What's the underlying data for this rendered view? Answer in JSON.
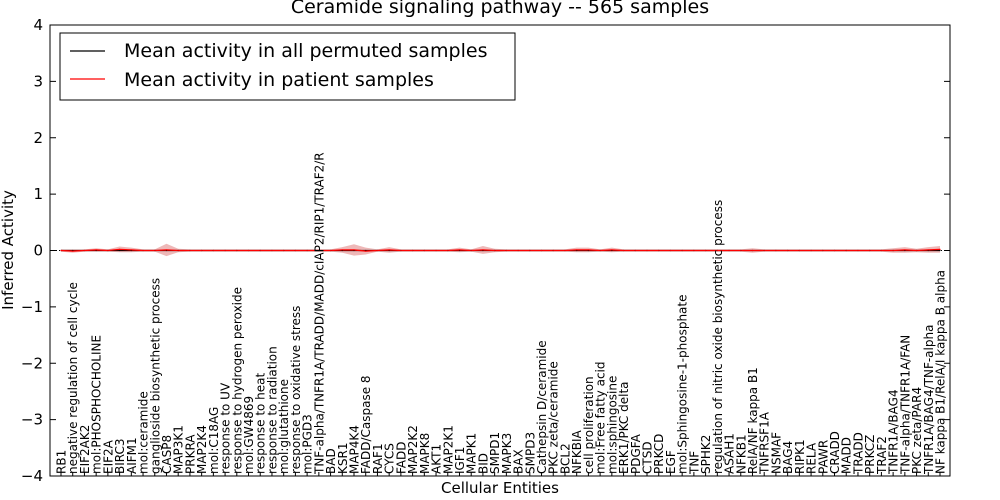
{
  "chart_data": {
    "type": "line",
    "title": "Ceramide signaling pathway -- 565 samples",
    "xlabel": "Cellular Entities",
    "ylabel": "Inferred Activity",
    "ylim": [
      -4,
      4
    ],
    "yticks": [
      "−4",
      "−3",
      "−2",
      "−1",
      "0",
      "1",
      "2",
      "3",
      "4"
    ],
    "grid": false,
    "legend_placement": "top-left",
    "colors": {
      "permuted": "#000000",
      "patient": "#ff0000",
      "band": "#e8a0a0"
    },
    "categories": [
      "RB1",
      "negative regulation of cell cycle",
      "EIF2AK2",
      "mol:PHOSPHOCHOLINE",
      "EIF2A",
      "BIRC3",
      "AIFM1",
      "mol:ceramide",
      "ganglioside biosynthetic process",
      "CASP8",
      "MAP3K1",
      "PRKRA",
      "MAP2K4",
      "mol:C18AG",
      "response to UV",
      "response to hydrogen peroxide",
      "mol:GW4869",
      "response to heat",
      "response to radiation",
      "mol:glutathione",
      "response to oxidative stress",
      "mol:PGD3",
      "TNF-alpha/TNFR1A/TRADD/MADD/cIAP2/RIP1/TRAF2/R",
      "BAD",
      "KSR1",
      "MAP4K4",
      "FADD/Caspase 8",
      "RAF1",
      "CYCS",
      "FADD",
      "MAP2K2",
      "MAPK8",
      "AKT1",
      "MAP2K1",
      "IGF1",
      "MAPK1",
      "BID",
      "SMPD1",
      "MAPK3",
      "BAX",
      "SMPD3",
      "Cathepsin D/ceramide",
      "PKC zeta/ceramide",
      "BCL2",
      "NFKBIA",
      "cell proliferation",
      "mol:Free fatty acid",
      "mol:sphingosine",
      "ERK1/PKC delta",
      "PDGFA",
      "CTSD",
      "PRKCD",
      "EGF",
      "mol:Sphingosine-1-phosphate",
      "TNF",
      "SPHK2",
      "regulation of nitric oxide biosynthetic process",
      "ASAH1",
      "NFKB1",
      "RelA/NF kappa B1",
      "TNFRSF1A",
      "NSMAF",
      "BAG4",
      "RIPK1",
      "RELA",
      "PAWR",
      "CRADD",
      "MADD",
      "TRADD",
      "PRKCZ",
      "TRAF2",
      "TNFR1A/BAG4",
      "TNF-alpha/TNFR1A/FAN",
      "PKC zeta/PAR4",
      "TNFR1A/BAG4/TNF-alpha",
      "NF kappa B1/RelA/I kappa B alpha"
    ],
    "series": [
      {
        "name": "Mean activity in all permuted samples",
        "values": [
          0,
          0,
          0,
          0,
          0,
          0,
          0,
          0,
          0,
          0,
          0,
          0,
          0,
          0,
          0,
          0,
          0,
          0,
          0,
          0,
          0,
          0,
          0,
          0,
          0,
          0,
          0,
          0,
          0,
          0,
          0,
          0,
          0,
          0,
          0,
          0,
          0,
          0,
          0,
          0,
          0,
          0,
          0,
          0,
          0,
          0,
          0,
          0,
          0,
          0,
          0,
          0,
          0,
          0,
          0,
          0,
          0,
          0,
          0,
          0,
          0,
          0,
          0,
          0,
          0,
          0,
          0,
          0,
          0,
          0,
          0,
          0,
          0,
          0,
          0,
          0
        ]
      },
      {
        "name": "Mean activity in patient samples",
        "values": [
          0.0,
          -0.01,
          0.0,
          0.01,
          0.0,
          0.02,
          0.01,
          0.0,
          0.0,
          0.01,
          0.0,
          0.0,
          0.0,
          0.0,
          0.0,
          0.0,
          0.0,
          0.0,
          0.0,
          0.0,
          0.0,
          0.0,
          0.0,
          0.0,
          0.01,
          0.01,
          -0.01,
          0.0,
          0.01,
          0.0,
          0.0,
          0.0,
          0.0,
          0.0,
          0.01,
          0.0,
          0.01,
          0.0,
          0.0,
          0.0,
          0.0,
          0.0,
          0.0,
          0.0,
          0.01,
          0.01,
          0.0,
          0.01,
          0.0,
          0.0,
          0.0,
          0.0,
          0.0,
          0.0,
          0.0,
          0.0,
          0.0,
          0.0,
          0.0,
          0.0,
          0.0,
          0.0,
          0.0,
          0.0,
          0.0,
          0.0,
          0.0,
          0.0,
          0.0,
          0.0,
          0.0,
          0.0,
          0.01,
          0.0,
          0.01,
          0.02
        ],
        "band": [
          0.02,
          0.03,
          0.02,
          0.03,
          0.02,
          0.05,
          0.04,
          0.02,
          0.02,
          0.11,
          0.03,
          0.02,
          0.02,
          0.02,
          0.02,
          0.02,
          0.02,
          0.02,
          0.02,
          0.02,
          0.02,
          0.02,
          0.02,
          0.02,
          0.05,
          0.1,
          0.06,
          0.02,
          0.05,
          0.02,
          0.02,
          0.02,
          0.02,
          0.02,
          0.04,
          0.02,
          0.07,
          0.03,
          0.02,
          0.02,
          0.02,
          0.02,
          0.02,
          0.02,
          0.04,
          0.04,
          0.02,
          0.04,
          0.02,
          0.02,
          0.02,
          0.02,
          0.02,
          0.02,
          0.02,
          0.02,
          0.02,
          0.02,
          0.02,
          0.04,
          0.02,
          0.02,
          0.02,
          0.02,
          0.02,
          0.02,
          0.02,
          0.02,
          0.02,
          0.02,
          0.02,
          0.04,
          0.05,
          0.03,
          0.05,
          0.06
        ]
      }
    ]
  }
}
